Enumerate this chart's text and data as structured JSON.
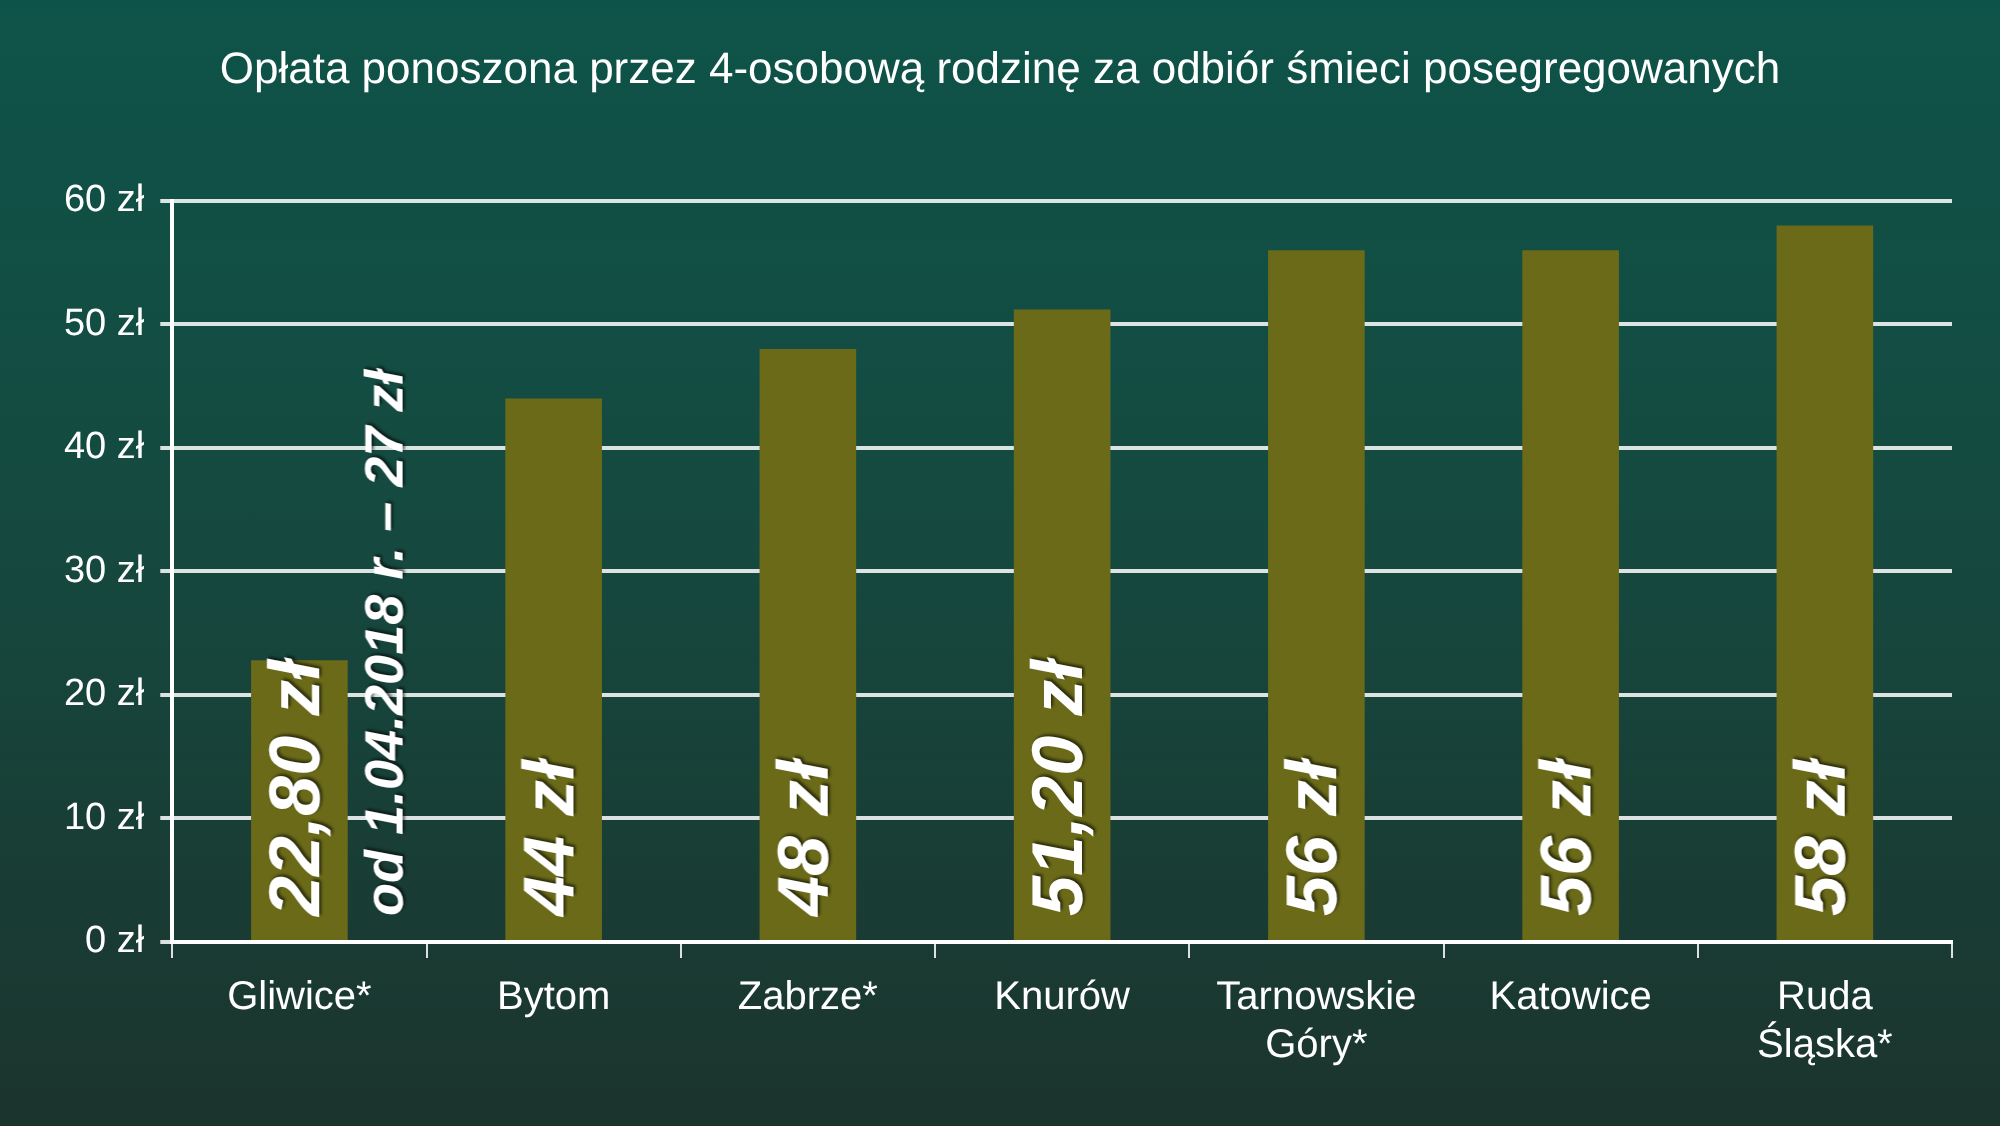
{
  "chart_data": {
    "type": "bar",
    "title": "Opłata ponoszona przez 4-osobową rodzinę za odbiór śmieci posegregowanych",
    "categories": [
      "Gliwice*",
      "Bytom",
      "Zabrze*",
      "Knurów",
      "Tarnowskie Góry*",
      "Katowice",
      "Ruda Śląska*"
    ],
    "values": [
      22.8,
      44,
      48,
      51.2,
      56,
      56,
      58
    ],
    "color": "#6a6a18",
    "value_labels": [
      "22,80 zł",
      "44 zł",
      "48 zł",
      "51,20 zł",
      "56 zł",
      "56 zł",
      "58 zł"
    ],
    "ylim": [
      0,
      60
    ],
    "yticks": [
      {
        "value": 0,
        "label": "0 zł"
      },
      {
        "value": 10,
        "label": "10 zł"
      },
      {
        "value": 20,
        "label": "20 zł"
      },
      {
        "value": 30,
        "label": "30 zł"
      },
      {
        "value": 40,
        "label": "40 zł"
      },
      {
        "value": 50,
        "label": "50 zł"
      },
      {
        "value": 60,
        "label": "60 zł"
      }
    ],
    "grid": "y",
    "legend": false,
    "annotations": [
      "od 1.04.2018 r. – 27 zł"
    ]
  }
}
